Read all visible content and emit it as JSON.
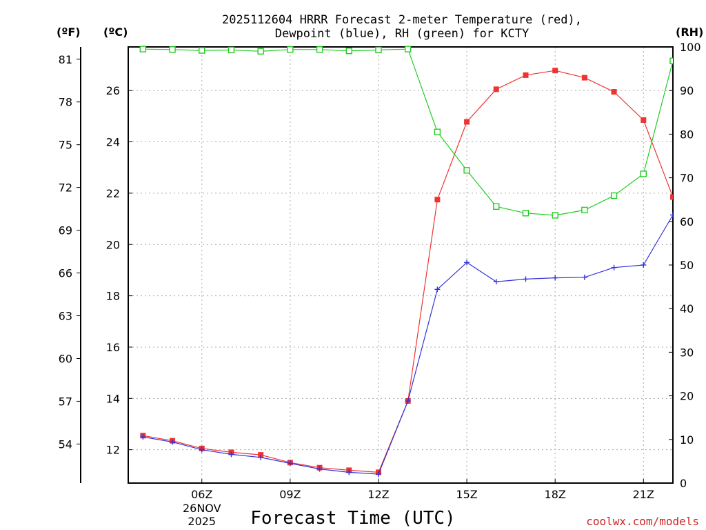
{
  "chart_data": {
    "type": "line",
    "title_line1": "2025112604 HRRR Forecast 2-meter Temperature (red),",
    "title_line2": "Dewpoint (blue), RH (green) for KCTY",
    "xlabel": "Forecast Time (UTC)",
    "left_outer_unit": "(ºF)",
    "left_inner_unit": "(ºC)",
    "right_unit": "(RH)",
    "credit": "coolwx.com/models",
    "x_hours": [
      4,
      5,
      6,
      7,
      8,
      9,
      10,
      11,
      12,
      13,
      14,
      15,
      16,
      17,
      18,
      19,
      20,
      21,
      22
    ],
    "x_range": [
      3.5,
      22
    ],
    "x_ticks": [
      {
        "hour": 6,
        "label": "06Z",
        "sub1": "26NOV",
        "sub2": "2025"
      },
      {
        "hour": 9,
        "label": "09Z"
      },
      {
        "hour": 12,
        "label": "12Z"
      },
      {
        "hour": 15,
        "label": "15Z"
      },
      {
        "hour": 18,
        "label": "18Z"
      },
      {
        "hour": 21,
        "label": "21Z"
      }
    ],
    "celsius_range": [
      10.7,
      27.7
    ],
    "celsius_ticks": [
      12,
      14,
      16,
      18,
      20,
      22,
      24,
      26
    ],
    "fahrenheit_ticks": [
      54,
      57,
      60,
      63,
      66,
      69,
      72,
      75,
      78,
      81
    ],
    "rh_range": [
      0,
      100
    ],
    "rh_ticks": [
      0,
      10,
      20,
      30,
      40,
      50,
      60,
      70,
      80,
      90,
      100
    ],
    "series": [
      {
        "name": "Temperature",
        "unit": "C",
        "color": "#ee3333",
        "marker": "filled-square",
        "values": [
          12.55,
          12.35,
          12.05,
          11.9,
          11.8,
          11.5,
          11.3,
          11.2,
          11.12,
          13.9,
          21.75,
          24.78,
          26.05,
          26.6,
          26.78,
          26.5,
          25.95,
          24.85,
          21.85
        ]
      },
      {
        "name": "Dewpoint",
        "unit": "C",
        "color": "#3333dd",
        "marker": "plus",
        "values": [
          12.5,
          12.3,
          12.0,
          11.82,
          11.7,
          11.47,
          11.25,
          11.12,
          11.05,
          13.9,
          18.25,
          19.3,
          18.55,
          18.65,
          18.7,
          18.72,
          19.1,
          19.2,
          21.15
        ]
      },
      {
        "name": "RH",
        "unit": "%",
        "color": "#22cc22",
        "marker": "open-square",
        "values": [
          99.5,
          99.4,
          99.2,
          99.3,
          99.0,
          99.4,
          99.4,
          99.1,
          99.3,
          99.5,
          80.5,
          71.7,
          63.4,
          61.9,
          61.4,
          62.6,
          65.9,
          70.9,
          96.8
        ]
      }
    ]
  }
}
